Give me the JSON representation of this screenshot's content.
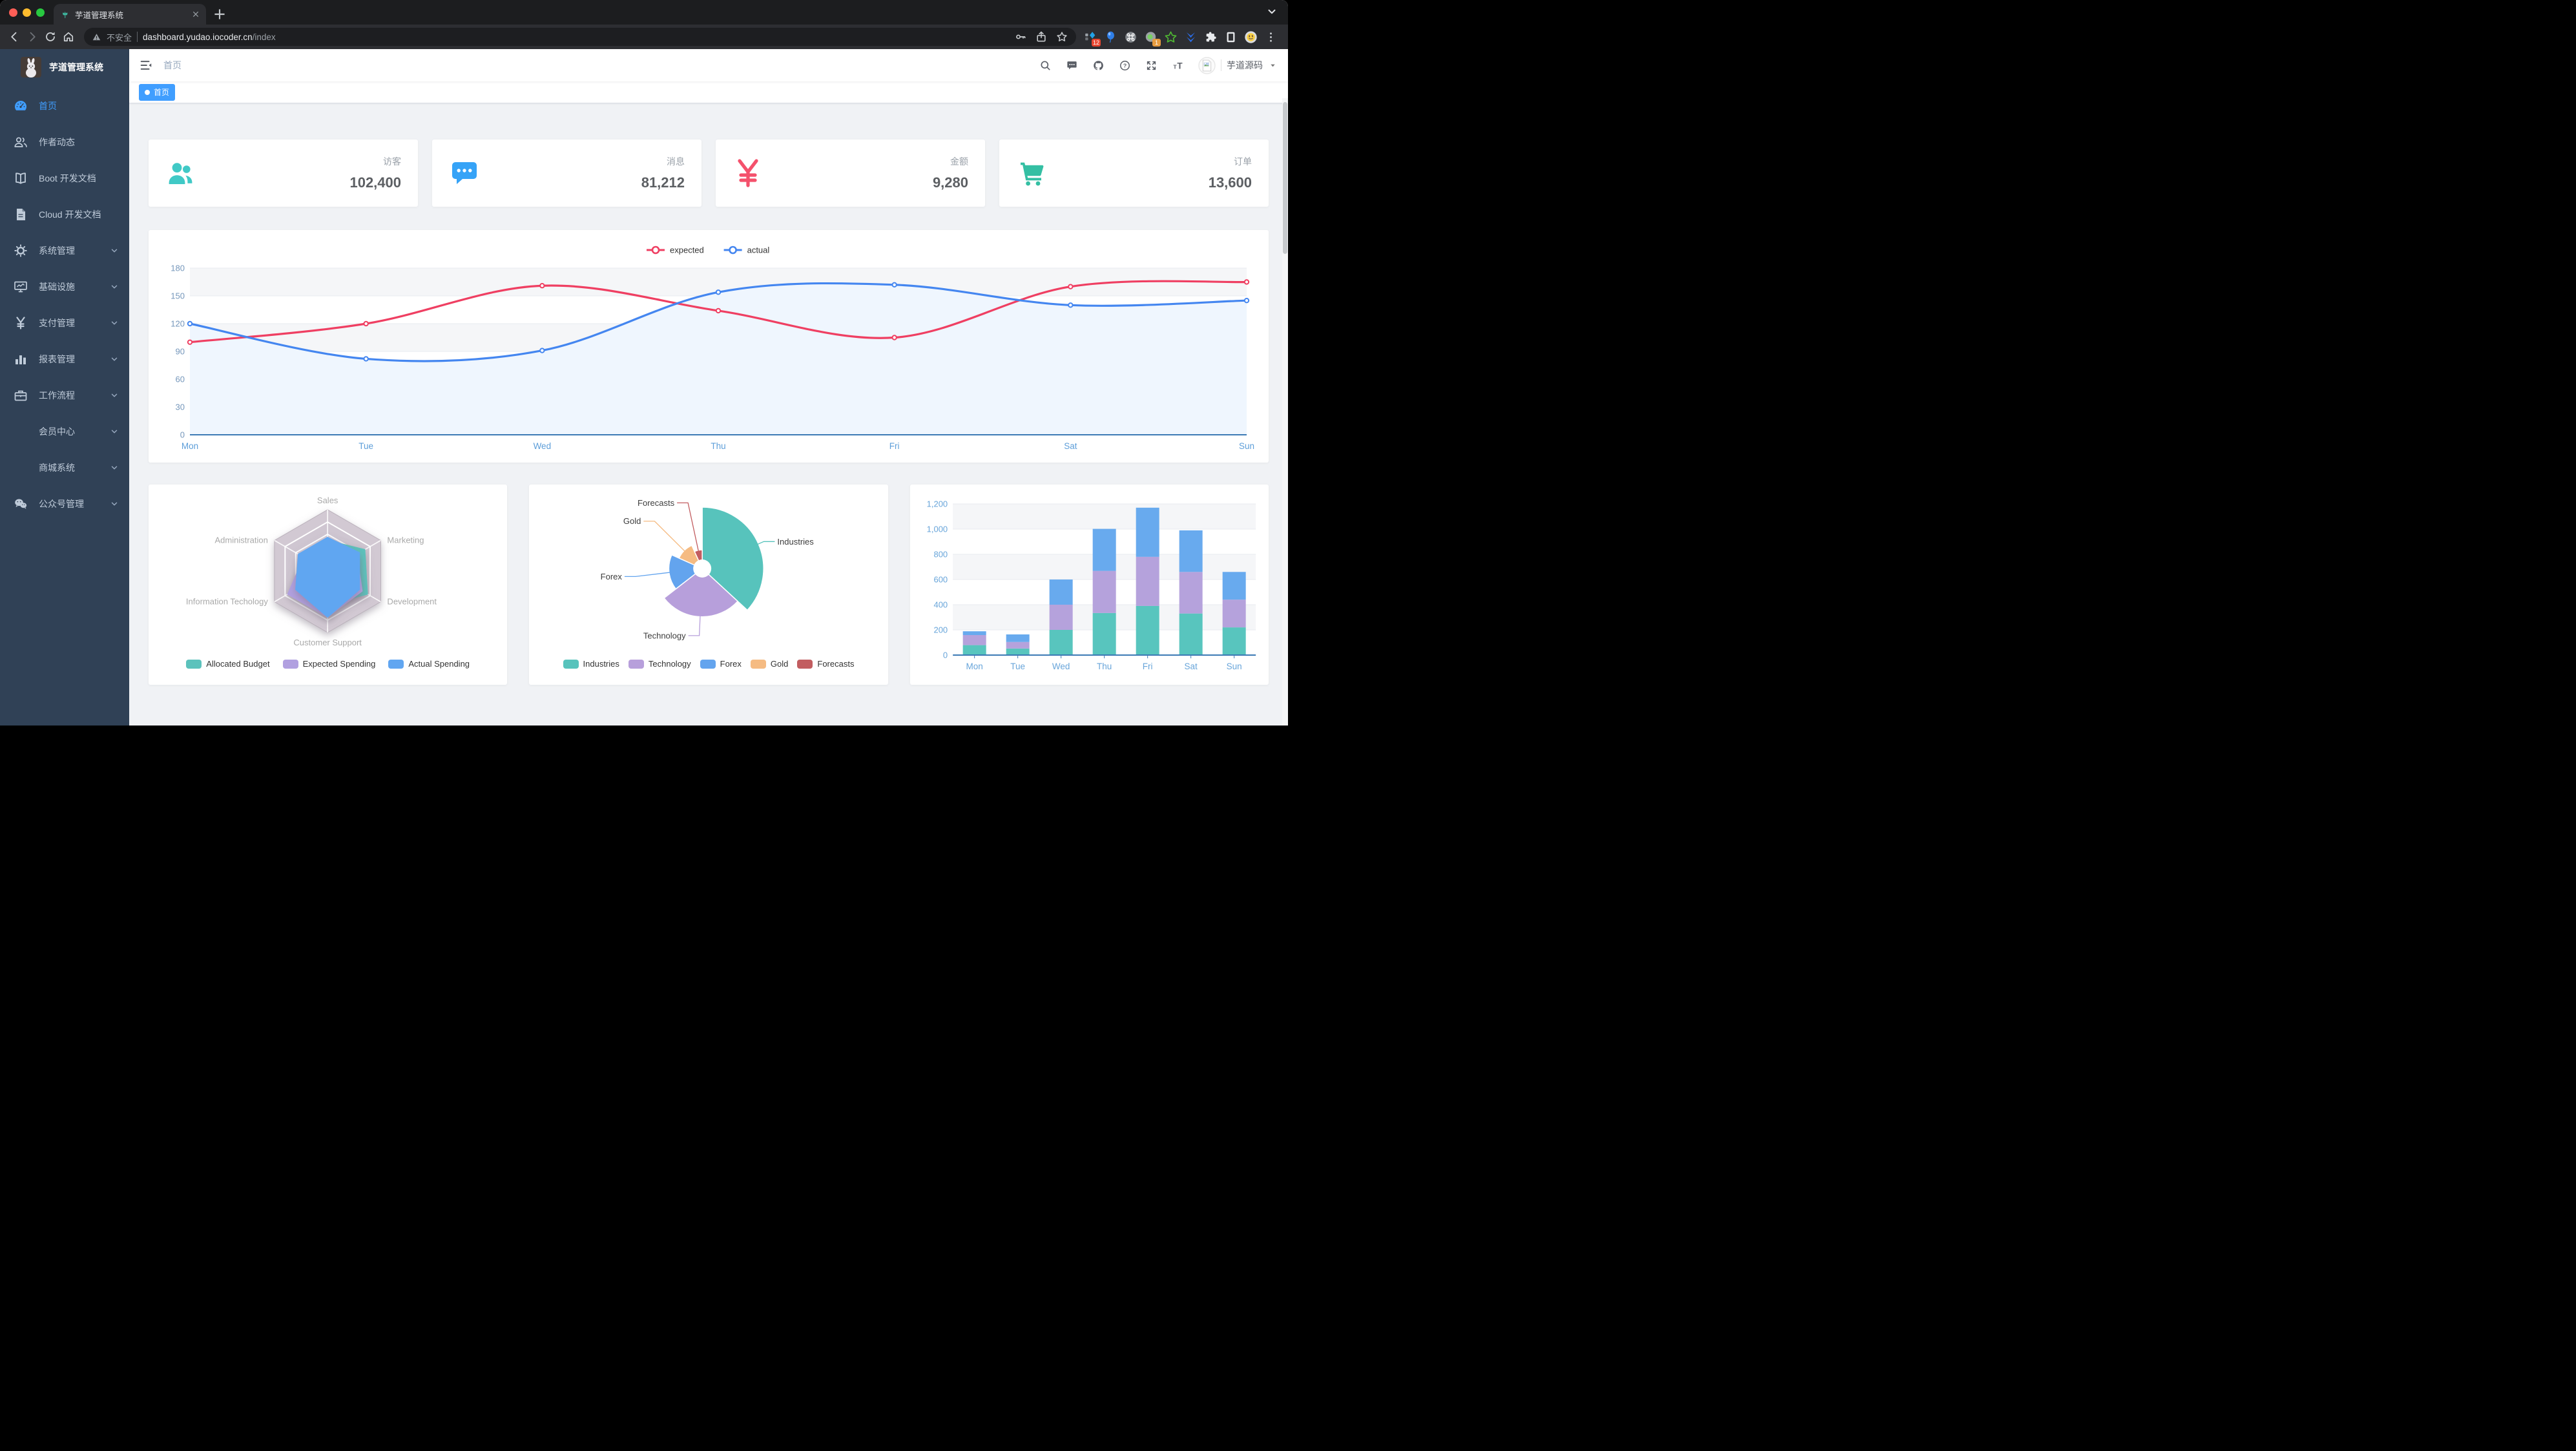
{
  "browser": {
    "tab_title": "芋道管理系统",
    "security_label": "不安全",
    "url_host": "dashboard.yudao.iocoder.cn",
    "url_path": "/index",
    "extensions": [
      {
        "icon": "blue-diamond",
        "badge": "12",
        "badge_color": "#e8452f"
      },
      {
        "icon": "balloon"
      },
      {
        "icon": "command"
      },
      {
        "icon": "recorder",
        "badge": "1",
        "badge_color": "#e79b3f"
      },
      {
        "icon": "green-star"
      },
      {
        "icon": "blue-chevrons"
      },
      {
        "icon": "puzzle"
      },
      {
        "icon": "reading-list"
      },
      {
        "icon": "profile"
      },
      {
        "icon": "menu-dots"
      }
    ]
  },
  "sidebar": {
    "logo_title": "芋道管理系统",
    "items": [
      {
        "label": "首页",
        "icon": "dashboard",
        "active": true
      },
      {
        "label": "作者动态",
        "icon": "people-line"
      },
      {
        "label": "Boot 开发文档",
        "icon": "book"
      },
      {
        "label": "Cloud 开发文档",
        "icon": "doc"
      },
      {
        "label": "系统管理",
        "icon": "gear",
        "expandable": true
      },
      {
        "label": "基础设施",
        "icon": "monitor",
        "expandable": true
      },
      {
        "label": "支付管理",
        "icon": "yen",
        "expandable": true
      },
      {
        "label": "报表管理",
        "icon": "chart",
        "expandable": true
      },
      {
        "label": "工作流程",
        "icon": "briefcase",
        "expandable": true
      },
      {
        "label": "会员中心",
        "icon": null,
        "expandable": true,
        "sub": true
      },
      {
        "label": "商城系统",
        "icon": null,
        "expandable": true,
        "sub": true
      },
      {
        "label": "公众号管理",
        "icon": "wechat",
        "expandable": true
      }
    ]
  },
  "header": {
    "breadcrumb": "首页",
    "icons": [
      "search",
      "chat",
      "github",
      "question",
      "fullscreen",
      "fontsize"
    ],
    "user_name": "芋道源码"
  },
  "tags": [
    {
      "label": "首页",
      "active": true
    }
  ],
  "stats": [
    {
      "label": "访客",
      "value": "102,400",
      "icon": "people",
      "color": "#40c9c6"
    },
    {
      "label": "消息",
      "value": "81,212",
      "icon": "message",
      "color": "#36a3f7"
    },
    {
      "label": "金额",
      "value": "9,280",
      "icon": "money",
      "color": "#f4516c"
    },
    {
      "label": "订单",
      "value": "13,600",
      "icon": "cart",
      "color": "#34bfa3"
    }
  ],
  "chart_data": [
    {
      "type": "line",
      "title": "",
      "categories": [
        "Mon",
        "Tue",
        "Wed",
        "Thu",
        "Fri",
        "Sat",
        "Sun"
      ],
      "ylim": [
        0,
        180
      ],
      "yticks": [
        0,
        30,
        60,
        90,
        120,
        150,
        180
      ],
      "grid": true,
      "legend_position": "top",
      "series": [
        {
          "name": "expected",
          "color": "#ef3f62",
          "values": [
            100,
            120,
            161,
            134,
            105,
            160,
            165
          ]
        },
        {
          "name": "actual",
          "color": "#4486f0",
          "area_color": "#eff6fe",
          "values": [
            120,
            82,
            91,
            154,
            162,
            140,
            145
          ]
        }
      ]
    },
    {
      "type": "radar",
      "axis_order": "clockwise-from-top",
      "axes": [
        {
          "name": "Sales",
          "max": 10000
        },
        {
          "name": "Marketing",
          "max": 20000
        },
        {
          "name": "Development",
          "max": 20000
        },
        {
          "name": "Customer Support",
          "max": 20000
        },
        {
          "name": "Information Techology",
          "max": 20000
        },
        {
          "name": "Administration",
          "max": 20000
        }
      ],
      "series": [
        {
          "name": "Allocated Budget",
          "color": "#5cc2bc",
          "values": [
            5000,
            14000,
            15000,
            11000,
            12000,
            7000
          ]
        },
        {
          "name": "Expected Spending",
          "color": "#b1a0e0",
          "values": [
            4000,
            11000,
            13000,
            15000,
            15000,
            9000
          ]
        },
        {
          "name": "Actual Spending",
          "color": "#61a6f1",
          "values": [
            5500,
            12000,
            12000,
            15000,
            12000,
            11000
          ]
        }
      ],
      "legend_position": "bottom"
    },
    {
      "type": "pie",
      "rose": true,
      "items": [
        {
          "name": "Industries",
          "value": 320,
          "color": "#57c3bc"
        },
        {
          "name": "Technology",
          "value": 240,
          "color": "#b79fdb"
        },
        {
          "name": "Forex",
          "value": 149,
          "color": "#63a4ee"
        },
        {
          "name": "Gold",
          "value": 100,
          "color": "#f5bb82"
        },
        {
          "name": "Forecasts",
          "value": 59,
          "color": "#c25d60"
        }
      ],
      "legend_position": "bottom"
    },
    {
      "type": "bar",
      "stacked": true,
      "categories": [
        "Mon",
        "Tue",
        "Wed",
        "Thu",
        "Fri",
        "Sat",
        "Sun"
      ],
      "ylim": [
        0,
        1200
      ],
      "yticks": [
        "0",
        "200",
        "400",
        "600",
        "800",
        "1,000",
        "1,200"
      ],
      "grid": true,
      "series": [
        {
          "name": "",
          "color": "#58c5be",
          "values": [
            79,
            52,
            200,
            334,
            390,
            330,
            220
          ]
        },
        {
          "name": "",
          "color": "#b5a2dc",
          "values": [
            80,
            52,
            200,
            334,
            390,
            330,
            220
          ]
        },
        {
          "name": "",
          "color": "#68aaee",
          "values": [
            30,
            60,
            200,
            334,
            390,
            330,
            220
          ]
        }
      ]
    }
  ]
}
